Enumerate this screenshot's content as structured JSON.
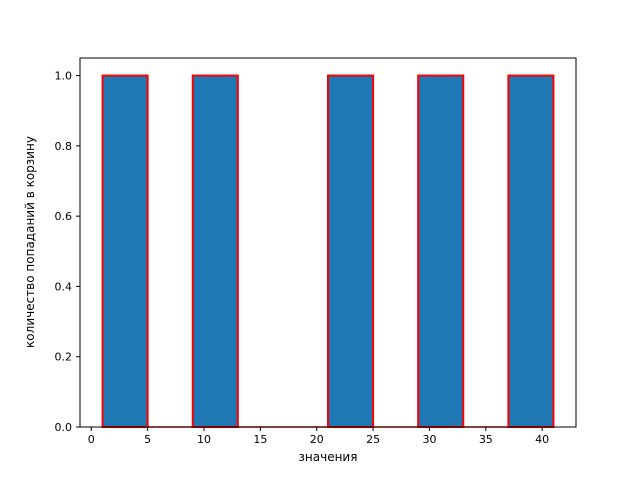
{
  "chart_data": {
    "type": "bar",
    "subtype": "histogram",
    "title": "",
    "xlabel": "значения",
    "ylabel": "количество попаданий в корзину",
    "xlim": [
      -1,
      43
    ],
    "ylim": [
      0,
      1.05
    ],
    "grid": false,
    "legend": null,
    "x_tick_values": [
      0,
      5,
      10,
      15,
      20,
      25,
      30,
      35,
      40
    ],
    "x_tick_labels": [
      "0",
      "5",
      "10",
      "15",
      "20",
      "25",
      "30",
      "35",
      "40"
    ],
    "y_tick_values": [
      0,
      0.2,
      0.4,
      0.6,
      0.8,
      1.0
    ],
    "y_tick_labels": [
      "0.0",
      "0.2",
      "0.4",
      "0.6",
      "0.8",
      "1.0"
    ],
    "bin_edges": [
      1,
      5,
      9,
      13,
      17,
      21,
      25,
      29,
      33,
      37,
      41
    ],
    "counts": [
      1,
      0,
      1,
      0,
      0,
      1,
      0,
      1,
      0,
      1
    ],
    "baseline": {
      "from": 1,
      "to": 41
    },
    "colors": {
      "bar_fill": "#1f77b4",
      "bar_edge": "#ff0000",
      "axis": "#000000",
      "background": "#ffffff"
    }
  }
}
